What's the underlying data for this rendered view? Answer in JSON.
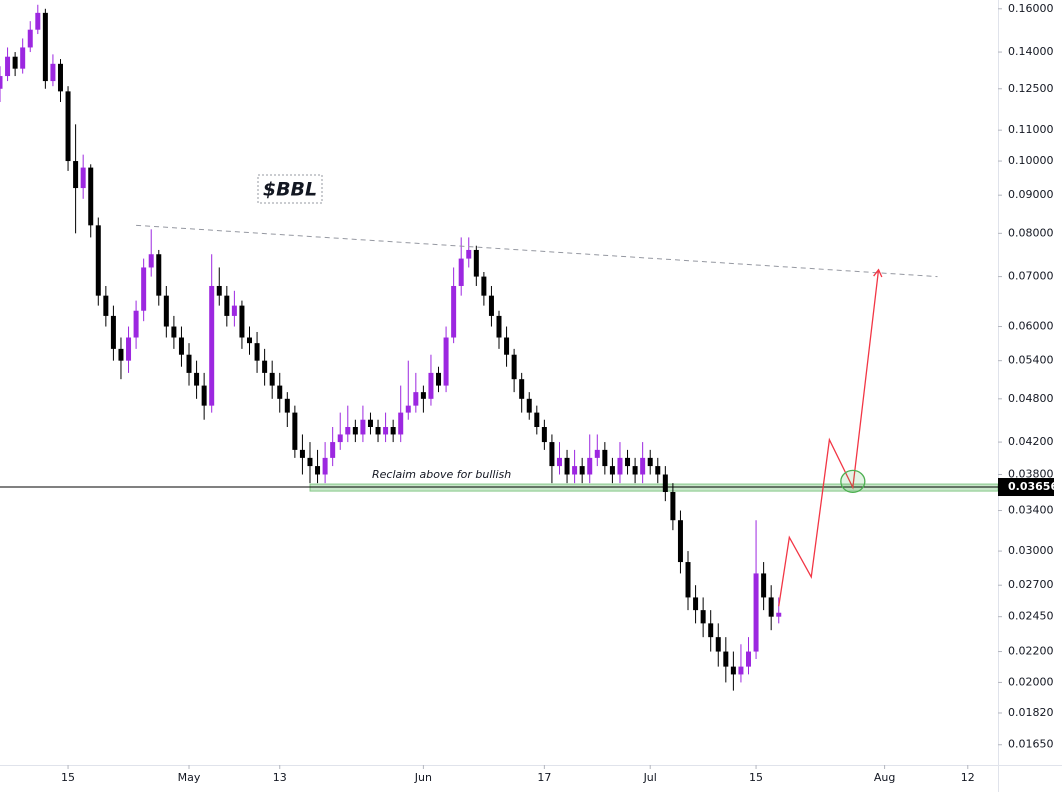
{
  "chart_data": {
    "type": "candlestick",
    "title": "$BBL",
    "annotation": "Reclaim above for bullish",
    "log_scale": true,
    "grid": false,
    "up_color": "#9c27e0",
    "down_color": "#000000",
    "xlim": [
      5,
      137
    ],
    "ylim": [
      0.0155,
      0.1644
    ],
    "xticks": [
      {
        "value": 14,
        "label": "15"
      },
      {
        "value": 30,
        "label": "May"
      },
      {
        "value": 42,
        "label": "13"
      },
      {
        "value": 61,
        "label": "Jun"
      },
      {
        "value": 77,
        "label": "17"
      },
      {
        "value": 91,
        "label": "Jul"
      },
      {
        "value": 105,
        "label": "15"
      },
      {
        "value": 122,
        "label": "Aug"
      },
      {
        "value": 133,
        "label": "12"
      }
    ],
    "yticks": [
      {
        "value": 0.16,
        "label": "0.16000"
      },
      {
        "value": 0.14,
        "label": "0.14000"
      },
      {
        "value": 0.125,
        "label": "0.12500"
      },
      {
        "value": 0.11,
        "label": "0.11000"
      },
      {
        "value": 0.1,
        "label": "0.10000"
      },
      {
        "value": 0.09,
        "label": "0.09000"
      },
      {
        "value": 0.08,
        "label": "0.08000"
      },
      {
        "value": 0.07,
        "label": "0.07000"
      },
      {
        "value": 0.06,
        "label": "0.06000"
      },
      {
        "value": 0.054,
        "label": "0.05400"
      },
      {
        "value": 0.048,
        "label": "0.04800"
      },
      {
        "value": 0.042,
        "label": "0.04200"
      },
      {
        "value": 0.038,
        "label": "0.03800"
      },
      {
        "value": 0.034,
        "label": "0.03400"
      },
      {
        "value": 0.03,
        "label": "0.03000"
      },
      {
        "value": 0.027,
        "label": "0.02700"
      },
      {
        "value": 0.0245,
        "label": "0.02450"
      },
      {
        "value": 0.022,
        "label": "0.02200"
      },
      {
        "value": 0.02,
        "label": "0.02000"
      },
      {
        "value": 0.0182,
        "label": "0.01820"
      },
      {
        "value": 0.0165,
        "label": "0.01650"
      }
    ],
    "price_line": 0.03656,
    "zone": {
      "x0": 46,
      "y": [
        0.0361,
        0.0369
      ],
      "color": "#4caf50"
    },
    "trendline": {
      "x": [
        23,
        129
      ],
      "y": [
        0.082,
        0.07
      ]
    },
    "projection": {
      "x": [
        108,
        109.4,
        112.3,
        114.7,
        117.8,
        121.2
      ],
      "y": [
        0.0253,
        0.0313,
        0.0277,
        0.0423,
        0.0365,
        0.0715
      ],
      "color": "#f23645"
    },
    "target": {
      "x": 117.8,
      "y": 0.0372,
      "color": "#4caf50"
    },
    "x": [
      5,
      6,
      7,
      8,
      9,
      10,
      11,
      12,
      13,
      14,
      15,
      16,
      17,
      18,
      19,
      20,
      21,
      22,
      23,
      24,
      25,
      26,
      27,
      28,
      29,
      30,
      31,
      32,
      33,
      34,
      35,
      36,
      37,
      38,
      39,
      40,
      41,
      42,
      43,
      44,
      45,
      46,
      47,
      48,
      49,
      50,
      51,
      52,
      53,
      54,
      55,
      56,
      57,
      58,
      59,
      60,
      61,
      62,
      63,
      64,
      65,
      66,
      67,
      68,
      69,
      70,
      71,
      72,
      73,
      74,
      75,
      76,
      77,
      78,
      79,
      80,
      81,
      82,
      83,
      84,
      85,
      86,
      87,
      88,
      89,
      90,
      91,
      92,
      93,
      94,
      95,
      96,
      97,
      98,
      99,
      100,
      101,
      102,
      103,
      104,
      105,
      106,
      107,
      108
    ],
    "ohlc": [
      [
        0.125,
        0.134,
        0.12,
        0.13
      ],
      [
        0.13,
        0.142,
        0.128,
        0.138
      ],
      [
        0.138,
        0.14,
        0.13,
        0.133
      ],
      [
        0.133,
        0.146,
        0.131,
        0.142
      ],
      [
        0.142,
        0.154,
        0.14,
        0.15
      ],
      [
        0.15,
        0.162,
        0.148,
        0.158
      ],
      [
        0.158,
        0.16,
        0.125,
        0.128
      ],
      [
        0.128,
        0.139,
        0.126,
        0.135
      ],
      [
        0.135,
        0.137,
        0.12,
        0.124
      ],
      [
        0.124,
        0.126,
        0.097,
        0.1
      ],
      [
        0.1,
        0.112,
        0.08,
        0.092
      ],
      [
        0.092,
        0.102,
        0.089,
        0.098
      ],
      [
        0.098,
        0.099,
        0.079,
        0.082
      ],
      [
        0.082,
        0.084,
        0.064,
        0.066
      ],
      [
        0.066,
        0.068,
        0.06,
        0.062
      ],
      [
        0.062,
        0.064,
        0.054,
        0.056
      ],
      [
        0.056,
        0.058,
        0.051,
        0.054
      ],
      [
        0.054,
        0.06,
        0.052,
        0.058
      ],
      [
        0.058,
        0.065,
        0.056,
        0.063
      ],
      [
        0.063,
        0.074,
        0.061,
        0.072
      ],
      [
        0.072,
        0.081,
        0.07,
        0.075
      ],
      [
        0.075,
        0.076,
        0.064,
        0.066
      ],
      [
        0.066,
        0.068,
        0.058,
        0.06
      ],
      [
        0.06,
        0.062,
        0.056,
        0.058
      ],
      [
        0.058,
        0.06,
        0.053,
        0.055
      ],
      [
        0.055,
        0.057,
        0.05,
        0.052
      ],
      [
        0.052,
        0.054,
        0.048,
        0.05
      ],
      [
        0.05,
        0.052,
        0.045,
        0.047
      ],
      [
        0.047,
        0.075,
        0.046,
        0.068
      ],
      [
        0.068,
        0.072,
        0.064,
        0.066
      ],
      [
        0.066,
        0.068,
        0.06,
        0.062
      ],
      [
        0.062,
        0.067,
        0.06,
        0.064
      ],
      [
        0.064,
        0.065,
        0.056,
        0.058
      ],
      [
        0.058,
        0.06,
        0.055,
        0.057
      ],
      [
        0.057,
        0.059,
        0.052,
        0.054
      ],
      [
        0.054,
        0.056,
        0.05,
        0.052
      ],
      [
        0.052,
        0.054,
        0.048,
        0.05
      ],
      [
        0.05,
        0.052,
        0.046,
        0.048
      ],
      [
        0.048,
        0.049,
        0.044,
        0.046
      ],
      [
        0.046,
        0.047,
        0.04,
        0.041
      ],
      [
        0.041,
        0.043,
        0.038,
        0.04
      ],
      [
        0.04,
        0.042,
        0.037,
        0.039
      ],
      [
        0.039,
        0.041,
        0.037,
        0.038
      ],
      [
        0.038,
        0.042,
        0.037,
        0.04
      ],
      [
        0.04,
        0.044,
        0.039,
        0.042
      ],
      [
        0.042,
        0.046,
        0.041,
        0.043
      ],
      [
        0.043,
        0.047,
        0.042,
        0.044
      ],
      [
        0.044,
        0.045,
        0.042,
        0.043
      ],
      [
        0.043,
        0.047,
        0.042,
        0.045
      ],
      [
        0.045,
        0.046,
        0.043,
        0.044
      ],
      [
        0.044,
        0.045,
        0.042,
        0.043
      ],
      [
        0.043,
        0.046,
        0.042,
        0.044
      ],
      [
        0.044,
        0.045,
        0.042,
        0.043
      ],
      [
        0.043,
        0.05,
        0.042,
        0.046
      ],
      [
        0.046,
        0.054,
        0.045,
        0.047
      ],
      [
        0.047,
        0.052,
        0.046,
        0.049
      ],
      [
        0.049,
        0.05,
        0.046,
        0.048
      ],
      [
        0.048,
        0.055,
        0.047,
        0.052
      ],
      [
        0.052,
        0.053,
        0.049,
        0.05
      ],
      [
        0.05,
        0.06,
        0.049,
        0.058
      ],
      [
        0.058,
        0.072,
        0.057,
        0.068
      ],
      [
        0.068,
        0.079,
        0.066,
        0.074
      ],
      [
        0.074,
        0.079,
        0.072,
        0.076
      ],
      [
        0.076,
        0.077,
        0.068,
        0.07
      ],
      [
        0.07,
        0.071,
        0.064,
        0.066
      ],
      [
        0.066,
        0.068,
        0.06,
        0.062
      ],
      [
        0.062,
        0.063,
        0.056,
        0.058
      ],
      [
        0.058,
        0.06,
        0.053,
        0.055
      ],
      [
        0.055,
        0.056,
        0.049,
        0.051
      ],
      [
        0.051,
        0.052,
        0.046,
        0.048
      ],
      [
        0.048,
        0.049,
        0.045,
        0.046
      ],
      [
        0.046,
        0.047,
        0.043,
        0.044
      ],
      [
        0.044,
        0.045,
        0.041,
        0.042
      ],
      [
        0.042,
        0.043,
        0.037,
        0.039
      ],
      [
        0.039,
        0.042,
        0.038,
        0.04
      ],
      [
        0.04,
        0.041,
        0.037,
        0.038
      ],
      [
        0.038,
        0.041,
        0.037,
        0.039
      ],
      [
        0.039,
        0.04,
        0.037,
        0.038
      ],
      [
        0.038,
        0.043,
        0.037,
        0.04
      ],
      [
        0.04,
        0.043,
        0.039,
        0.041
      ],
      [
        0.041,
        0.042,
        0.038,
        0.039
      ],
      [
        0.039,
        0.04,
        0.037,
        0.038
      ],
      [
        0.038,
        0.042,
        0.037,
        0.04
      ],
      [
        0.04,
        0.041,
        0.038,
        0.039
      ],
      [
        0.039,
        0.04,
        0.037,
        0.038
      ],
      [
        0.038,
        0.042,
        0.037,
        0.04
      ],
      [
        0.04,
        0.041,
        0.038,
        0.039
      ],
      [
        0.039,
        0.04,
        0.037,
        0.038
      ],
      [
        0.038,
        0.039,
        0.035,
        0.036
      ],
      [
        0.036,
        0.037,
        0.032,
        0.033
      ],
      [
        0.033,
        0.034,
        0.028,
        0.029
      ],
      [
        0.029,
        0.03,
        0.025,
        0.026
      ],
      [
        0.026,
        0.027,
        0.024,
        0.025
      ],
      [
        0.025,
        0.026,
        0.023,
        0.024
      ],
      [
        0.024,
        0.025,
        0.022,
        0.023
      ],
      [
        0.023,
        0.024,
        0.021,
        0.022
      ],
      [
        0.022,
        0.023,
        0.02,
        0.021
      ],
      [
        0.021,
        0.022,
        0.0195,
        0.0205
      ],
      [
        0.0205,
        0.0225,
        0.02,
        0.021
      ],
      [
        0.021,
        0.023,
        0.0205,
        0.022
      ],
      [
        0.022,
        0.033,
        0.0215,
        0.028
      ],
      [
        0.028,
        0.029,
        0.025,
        0.026
      ],
      [
        0.026,
        0.027,
        0.0235,
        0.0245
      ],
      [
        0.0245,
        0.026,
        0.024,
        0.0248
      ]
    ]
  }
}
